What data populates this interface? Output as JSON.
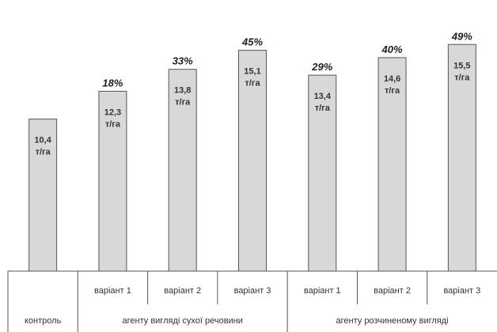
{
  "chart_data": {
    "type": "bar",
    "unit": "т/га",
    "ylim": [
      0,
      17
    ],
    "grid": false,
    "legend": "none",
    "bar_color": "#d8d8d8",
    "bar_border_color": "#555555",
    "bars": [
      {
        "category": "",
        "group": "контроль",
        "value": 10.4,
        "value_label": "10,4",
        "percent": ""
      },
      {
        "category": "варіант 1",
        "group": "агенту вигляді сухої речовини",
        "value": 12.3,
        "value_label": "12,3",
        "percent": "18%"
      },
      {
        "category": "варіант 2",
        "group": "агенту вигляді сухої речовини",
        "value": 13.8,
        "value_label": "13,8",
        "percent": "33%"
      },
      {
        "category": "варіант 3",
        "group": "агенту вигляді сухої речовини",
        "value": 15.1,
        "value_label": "15,1",
        "percent": "45%"
      },
      {
        "category": "варіант 1",
        "group": "агенту розчиненому вигляді",
        "value": 13.4,
        "value_label": "13,4",
        "percent": "29%"
      },
      {
        "category": "варіант 2",
        "group": "агенту розчиненому вигляді",
        "value": 14.6,
        "value_label": "14,6",
        "percent": "40%"
      },
      {
        "category": "варіант 3",
        "group": "агенту розчиненому вигляді",
        "value": 15.5,
        "value_label": "15,5",
        "percent": "49%"
      }
    ],
    "groups": [
      {
        "label": "контроль",
        "span": [
          0,
          0
        ]
      },
      {
        "label": "агенту вигляді сухої речовини",
        "span": [
          1,
          3
        ]
      },
      {
        "label": "агенту розчиненому вигляді",
        "span": [
          4,
          6
        ]
      }
    ]
  }
}
